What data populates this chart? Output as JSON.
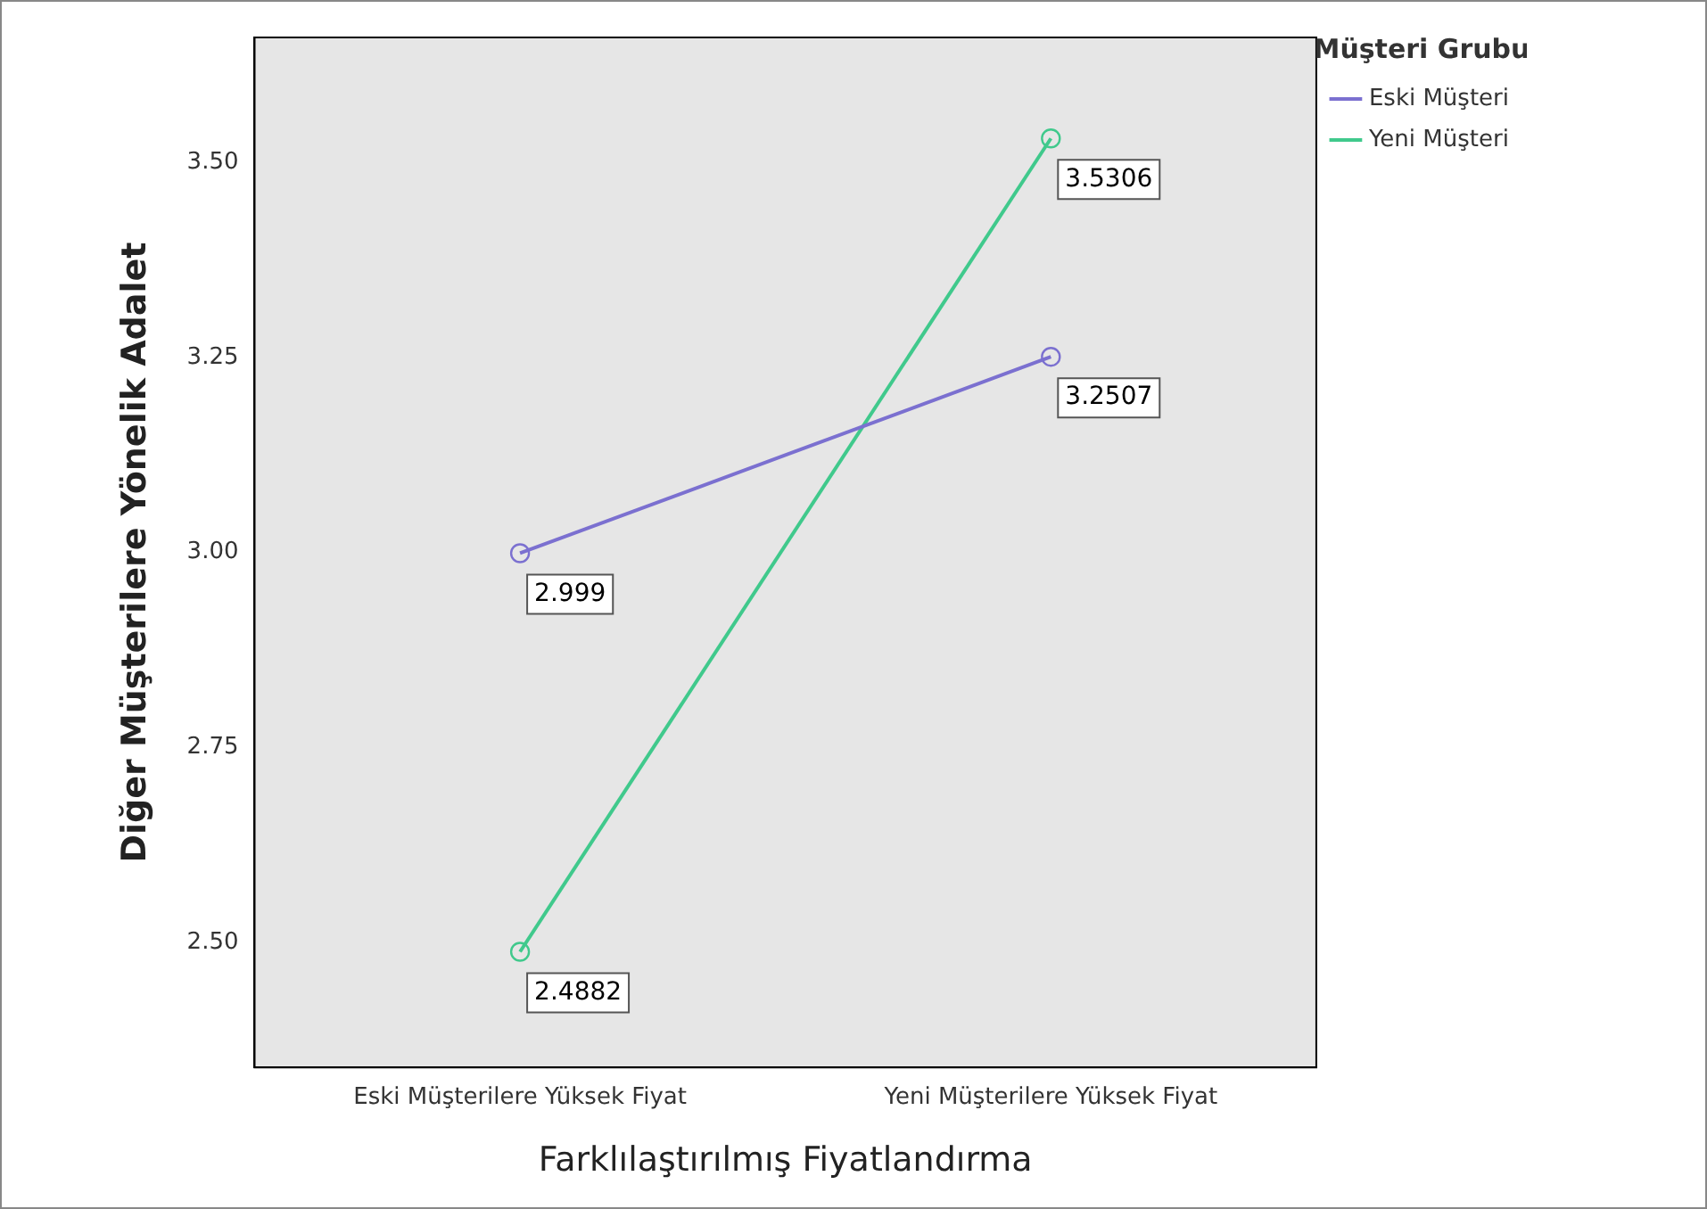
{
  "chart_data": {
    "type": "line",
    "xlabel": "Farklılaştırılmış Fiyatlandırma",
    "ylabel": "Diğer Müşterilere Yönelik Adalet",
    "legend_title": "Müşteri Grubu",
    "categories": [
      "Eski Müşterilere Yüksek Fiyat",
      "Yeni Müşterilere Yüksek Fiyat"
    ],
    "series": [
      {
        "name": "Eski Müşteri",
        "color": "#7b70d0",
        "values": [
          2.999,
          3.2507
        ],
        "value_labels": [
          "2.999",
          "3.2507"
        ]
      },
      {
        "name": "Yeni Müşteri",
        "color": "#40c98c",
        "values": [
          2.4882,
          3.5306
        ],
        "value_labels": [
          "2.4882",
          "3.5306"
        ]
      }
    ],
    "ylim": [
      2.34,
      3.66
    ],
    "yticks": [
      {
        "value": 2.5,
        "label": "2.50"
      },
      {
        "value": 2.75,
        "label": "2.75"
      },
      {
        "value": 3,
        "label": "3.00"
      },
      {
        "value": 3.25,
        "label": "3.25"
      },
      {
        "value": 3.5,
        "label": "3.50"
      }
    ],
    "grid": false,
    "legend": "top right",
    "marker": "circle",
    "line_style": "solid"
  }
}
